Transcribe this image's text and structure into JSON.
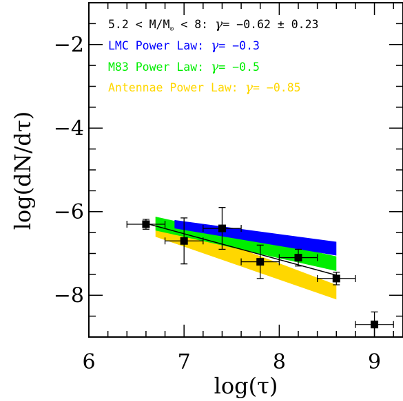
{
  "chart_data": {
    "type": "scatter",
    "xlabel": "log(τ)",
    "ylabel": "log(dN/dτ)",
    "xlim": [
      6,
      9.3
    ],
    "ylim": [
      -9.0,
      -1.0
    ],
    "x_ticks": [
      "6",
      "7",
      "8",
      "9"
    ],
    "y_ticks": [
      "−2",
      "−4",
      "−6",
      "−8"
    ],
    "grid": false,
    "legend_placement": "top",
    "legend": [
      {
        "prefix": "5.2 < M/M",
        "sub": "⊙",
        "middle": " < 8: ",
        "gamma": "γ",
        "suffix": "= −0.62 ± 0.23",
        "color": "#000000"
      },
      {
        "prefix": "LMC Power Law: ",
        "gamma": "γ",
        "suffix": "= −0.3",
        "color": "#0000ff"
      },
      {
        "prefix": "M83 Power Law: ",
        "gamma": "γ",
        "suffix": "= −0.5",
        "color": "#00ee00"
      },
      {
        "prefix": "Antennae Power Law: ",
        "gamma": "γ",
        "suffix": "= −0.85",
        "color": "#ffd700"
      }
    ],
    "points": [
      {
        "x": 6.6,
        "y": -6.3,
        "xerr": 0.2,
        "yerr": 0.12
      },
      {
        "x": 7.0,
        "y": -6.7,
        "xerr": 0.2,
        "yerr": 0.55
      },
      {
        "x": 7.4,
        "y": -6.4,
        "xerr": 0.2,
        "yerr": 0.5
      },
      {
        "x": 7.8,
        "y": -7.2,
        "xerr": 0.2,
        "yerr": 0.4
      },
      {
        "x": 8.2,
        "y": -7.1,
        "xerr": 0.2,
        "yerr": 0.2
      },
      {
        "x": 8.6,
        "y": -7.6,
        "xerr": 0.2,
        "yerr": 0.15
      },
      {
        "x": 9.0,
        "y": -8.7,
        "xerr": 0.2,
        "yerr": 0.3
      }
    ],
    "fit_line": {
      "x": [
        6.6,
        8.6
      ],
      "y": [
        -6.28,
        -7.52
      ]
    },
    "bands": [
      {
        "name": "Antennae",
        "color": "#ffd700",
        "x": [
          6.7,
          8.6
        ],
        "upper": [
          -6.12,
          -7.75
        ],
        "lower": [
          -6.6,
          -8.1
        ]
      },
      {
        "name": "M83",
        "color": "#00ee00",
        "x": [
          6.7,
          8.6
        ],
        "upper": [
          -6.12,
          -7.07
        ],
        "lower": [
          -6.45,
          -7.42
        ]
      },
      {
        "name": "LMC",
        "color": "#0000ff",
        "x": [
          6.9,
          8.6
        ],
        "upper": [
          -6.2,
          -6.72
        ],
        "lower": [
          -6.4,
          -7.05
        ]
      }
    ]
  }
}
